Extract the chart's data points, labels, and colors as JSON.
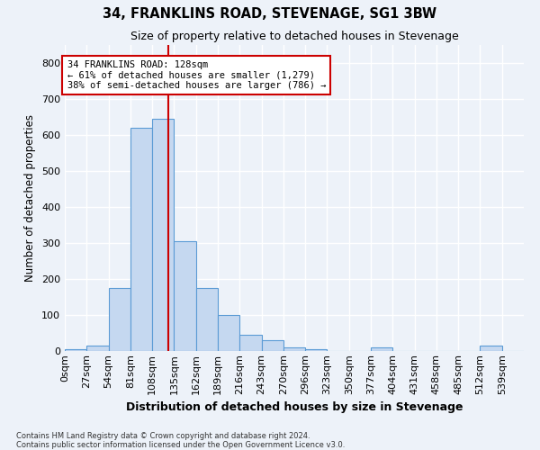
{
  "title": "34, FRANKLINS ROAD, STEVENAGE, SG1 3BW",
  "subtitle": "Size of property relative to detached houses in Stevenage",
  "xlabel": "Distribution of detached houses by size in Stevenage",
  "ylabel": "Number of detached properties",
  "bin_labels": [
    "0sqm",
    "27sqm",
    "54sqm",
    "81sqm",
    "108sqm",
    "135sqm",
    "162sqm",
    "189sqm",
    "216sqm",
    "243sqm",
    "270sqm",
    "296sqm",
    "323sqm",
    "350sqm",
    "377sqm",
    "404sqm",
    "431sqm",
    "458sqm",
    "485sqm",
    "512sqm",
    "539sqm"
  ],
  "bar_heights": [
    5,
    15,
    175,
    620,
    645,
    305,
    175,
    100,
    45,
    30,
    10,
    5,
    0,
    0,
    10,
    0,
    0,
    0,
    0,
    15,
    0
  ],
  "bar_color": "#c5d8f0",
  "bar_edge_color": "#5b9bd5",
  "property_value": 128,
  "property_label": "34 FRANKLINS ROAD: 128sqm",
  "annotation_line1": "← 61% of detached houses are smaller (1,279)",
  "annotation_line2": "38% of semi-detached houses are larger (786) →",
  "vline_color": "#cc0000",
  "annotation_box_color": "#cc0000",
  "ylim": [
    0,
    850
  ],
  "yticks": [
    0,
    100,
    200,
    300,
    400,
    500,
    600,
    700,
    800
  ],
  "footer_line1": "Contains HM Land Registry data © Crown copyright and database right 2024.",
  "footer_line2": "Contains public sector information licensed under the Open Government Licence v3.0.",
  "background_color": "#edf2f9",
  "grid_color": "#ffffff"
}
